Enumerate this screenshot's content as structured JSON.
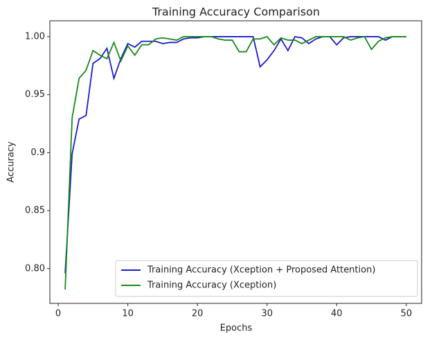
{
  "chart_data": {
    "type": "line",
    "title": "Training Accuracy Comparison",
    "xlabel": "Epochs",
    "ylabel": "Accuracy",
    "x": [
      1,
      2,
      3,
      4,
      5,
      6,
      7,
      8,
      9,
      10,
      11,
      12,
      13,
      14,
      15,
      16,
      17,
      18,
      19,
      20,
      21,
      22,
      23,
      24,
      25,
      26,
      27,
      28,
      29,
      30,
      31,
      32,
      33,
      34,
      35,
      36,
      37,
      38,
      39,
      40,
      41,
      42,
      43,
      44,
      45,
      46,
      47,
      48,
      49,
      50
    ],
    "series": [
      {
        "name": "Training Accuracy (Xception + Proposed Attention)",
        "color": "#1a1acc",
        "values": [
          0.796,
          0.899,
          0.929,
          0.932,
          0.977,
          0.981,
          0.99,
          0.964,
          0.981,
          0.994,
          0.991,
          0.996,
          0.996,
          0.996,
          0.994,
          0.995,
          0.995,
          0.998,
          0.999,
          0.999,
          1.0,
          1.0,
          1.0,
          1.0,
          1.0,
          1.0,
          1.0,
          1.0,
          0.974,
          0.98,
          0.988,
          0.998,
          0.988,
          1.0,
          0.999,
          0.994,
          0.998,
          1.0,
          1.0,
          0.993,
          0.999,
          1.0,
          1.0,
          1.0,
          1.0,
          1.0,
          0.997,
          1.0,
          1.0,
          1.0
        ]
      },
      {
        "name": "Training Accuracy (Xception)",
        "color": "#158a15",
        "values": [
          0.782,
          0.93,
          0.964,
          0.971,
          0.988,
          0.984,
          0.981,
          0.995,
          0.979,
          0.992,
          0.984,
          0.993,
          0.993,
          0.998,
          0.999,
          0.998,
          0.997,
          1.0,
          1.0,
          1.0,
          1.0,
          1.0,
          0.998,
          0.997,
          0.997,
          0.987,
          0.987,
          0.998,
          0.998,
          1.0,
          0.993,
          0.999,
          0.997,
          0.997,
          0.994,
          0.997,
          1.0,
          1.0,
          1.0,
          1.0,
          1.0,
          0.997,
          0.999,
          1.0,
          0.989,
          0.996,
          0.999,
          1.0,
          1.0,
          1.0
        ]
      }
    ],
    "xlim": [
      -1.2,
      52.2
    ],
    "ylim": [
      0.77,
      1.0137
    ],
    "xticks": [
      0,
      10,
      20,
      30,
      40,
      50
    ],
    "yticks": [
      {
        "value": 0.8,
        "label": "0.80"
      },
      0.85,
      0.9,
      0.95,
      {
        "value": 1.0,
        "label": "1.00"
      }
    ],
    "legend": "lower right"
  }
}
